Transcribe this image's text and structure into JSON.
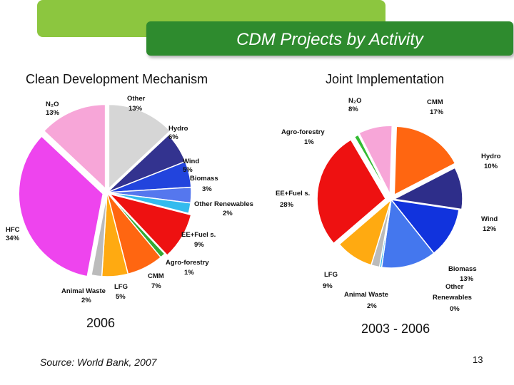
{
  "slide": {
    "title": "CDM Projects by Activity",
    "source": "Source: World Bank, 2007",
    "page_number": "13",
    "colors": {
      "header_green": "#2e8b2e",
      "accent_lime": "#8cc63f"
    }
  },
  "chart_data": [
    {
      "type": "pie",
      "title": "Clean Development Mechanism",
      "period": "2006",
      "slices": [
        {
          "label": "Other",
          "value": 13,
          "display": "13%",
          "color": "#d6d6d6"
        },
        {
          "label": "Hydro",
          "value": 6,
          "display": "6%",
          "color": "#33338f"
        },
        {
          "label": "Wind",
          "value": 5,
          "display": "5%",
          "color": "#2244dd"
        },
        {
          "label": "Biomass",
          "value": 3,
          "display": "3%",
          "color": "#5577ee"
        },
        {
          "label": "Other Renewables",
          "value": 2,
          "display": "2%",
          "color": "#33bbee"
        },
        {
          "label": "EE+Fuel s.",
          "value": 9,
          "display": "9%",
          "color": "#ee1111"
        },
        {
          "label": "Agro-forestry",
          "value": 1,
          "display": "1%",
          "color": "#33aa33"
        },
        {
          "label": "CMM",
          "value": 7,
          "display": "7%",
          "color": "#ff6611"
        },
        {
          "label": "LFG",
          "value": 5,
          "display": "5%",
          "color": "#ffaa11"
        },
        {
          "label": "Animal Waste",
          "value": 2,
          "display": "2%",
          "color": "#bbbbbb"
        },
        {
          "label": "HFC",
          "value": 34,
          "display": "34%",
          "color": "#ee44ee"
        },
        {
          "label": "N2O",
          "value": 13,
          "display": "13%",
          "color": "#f7a6d8"
        }
      ]
    },
    {
      "type": "pie",
      "title": "Joint Implementation",
      "period": "2003 - 2006",
      "slices": [
        {
          "label": "CMM",
          "value": 17,
          "display": "17%",
          "color": "#ff6611"
        },
        {
          "label": "Hydro",
          "value": 10,
          "display": "10%",
          "color": "#2e2e8a"
        },
        {
          "label": "Wind",
          "value": 12,
          "display": "12%",
          "color": "#1133dd"
        },
        {
          "label": "Biomass",
          "value": 13,
          "display": "13%",
          "color": "#4477ee"
        },
        {
          "label": "Other Renewables",
          "value": 0,
          "display": "0%",
          "color": "#33bbee"
        },
        {
          "label": "Animal Waste",
          "value": 2,
          "display": "2%",
          "color": "#bbbbbb"
        },
        {
          "label": "LFG",
          "value": 9,
          "display": "9%",
          "color": "#ffaa11"
        },
        {
          "label": "EE+Fuel s.",
          "value": 28,
          "display": "28%",
          "color": "#ee1111"
        },
        {
          "label": "Agro-forestry",
          "value": 1,
          "display": "1%",
          "color": "#33bb33"
        },
        {
          "label": "N2O",
          "value": 8,
          "display": "8%",
          "color": "#f7a6d8"
        }
      ]
    }
  ]
}
